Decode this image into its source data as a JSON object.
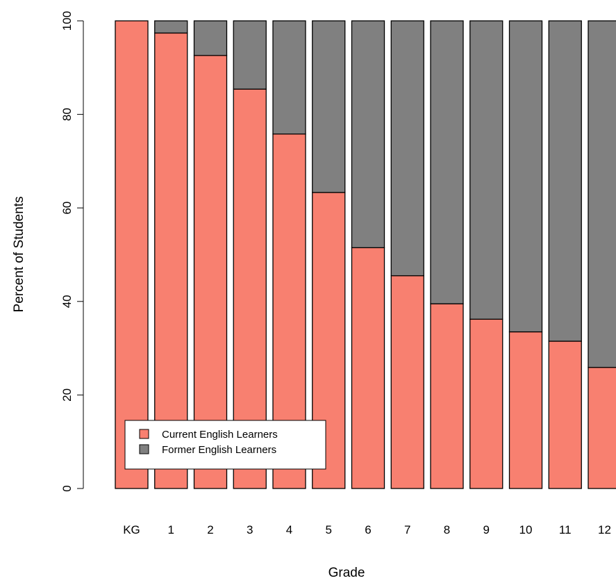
{
  "chart_data": {
    "type": "bar",
    "stacked": true,
    "title": "",
    "xlabel": "Grade",
    "ylabel": "Percent of Students",
    "ylim": [
      0,
      100
    ],
    "yticks": [
      0,
      20,
      40,
      60,
      80,
      100
    ],
    "categories": [
      "KG",
      "1",
      "2",
      "3",
      "4",
      "5",
      "6",
      "7",
      "8",
      "9",
      "10",
      "11",
      "12"
    ],
    "series": [
      {
        "name": "Current English Learners",
        "color": "#F88070",
        "values": [
          100,
          97.4,
          92.6,
          85.4,
          75.8,
          63.3,
          51.5,
          45.5,
          39.5,
          36.2,
          33.5,
          31.5,
          25.9
        ]
      },
      {
        "name": "Former English Learners",
        "color": "#808080",
        "values": [
          0,
          2.6,
          7.4,
          14.6,
          24.2,
          36.7,
          48.5,
          54.5,
          60.5,
          63.8,
          66.5,
          68.5,
          74.1
        ]
      }
    ],
    "legend_position": "bottom-left",
    "grid": false
  }
}
